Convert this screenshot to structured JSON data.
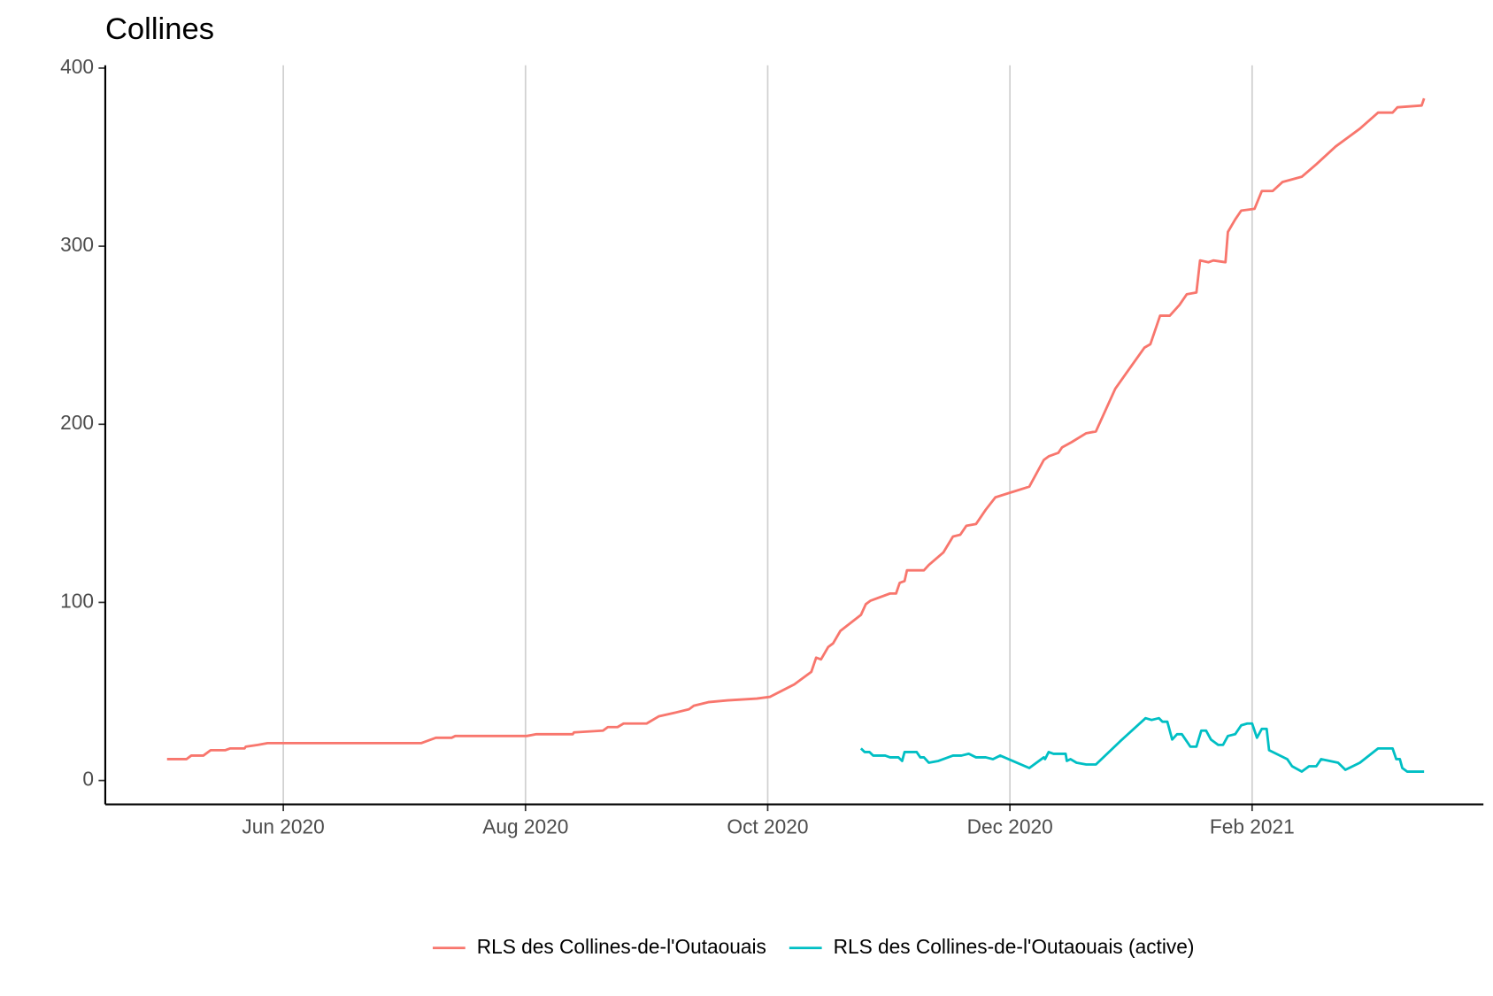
{
  "chart_data": {
    "type": "line",
    "title": "Collines",
    "xlim": [
      4.53,
      15.91
    ],
    "xticks": [
      {
        "value": 6,
        "label": "Jun 2020"
      },
      {
        "value": 8,
        "label": "Aug 2020"
      },
      {
        "value": 10,
        "label": "Oct 2020"
      },
      {
        "value": 12,
        "label": "Dec 2020"
      },
      {
        "value": 14,
        "label": "Feb 2021"
      }
    ],
    "ylim": [
      -13.4,
      401.6
    ],
    "yticks": [
      0,
      100,
      200,
      300,
      400
    ],
    "grid": "x",
    "legend": "bottom",
    "series": [
      {
        "name": "RLS des Collines-de-l'Outaouais",
        "color": "#f8766d",
        "x": [
          5.04,
          5.2,
          5.24,
          5.34,
          5.4,
          5.52,
          5.56,
          5.68,
          5.69,
          5.79,
          5.87,
          7.14,
          7.26,
          7.39,
          7.42,
          8.01,
          8.09,
          8.39,
          8.4,
          8.64,
          8.68,
          8.76,
          8.81,
          9.0,
          9.1,
          9.23,
          9.35,
          9.39,
          9.51,
          9.67,
          9.91,
          10.02,
          10.22,
          10.36,
          10.4,
          10.44,
          10.5,
          10.54,
          10.6,
          10.77,
          10.81,
          10.85,
          11.01,
          11.06,
          11.09,
          11.13,
          11.15,
          11.29,
          11.33,
          11.45,
          11.53,
          11.59,
          11.64,
          11.72,
          11.8,
          11.88,
          12.16,
          12.28,
          12.32,
          12.4,
          12.43,
          12.51,
          12.63,
          12.71,
          12.87,
          13.11,
          13.16,
          13.24,
          13.32,
          13.4,
          13.46,
          13.54,
          13.57,
          13.64,
          13.68,
          13.78,
          13.8,
          13.86,
          13.91,
          14.02,
          14.08,
          14.17,
          14.25,
          14.41,
          14.53,
          14.69,
          14.89,
          15.04,
          15.16,
          15.2,
          15.4,
          15.42
        ],
        "values": [
          12,
          12,
          14,
          14,
          17,
          17,
          18,
          18,
          19,
          20,
          21,
          21,
          24,
          24,
          25,
          25,
          26,
          26,
          27,
          28,
          30,
          30,
          32,
          32,
          36,
          38,
          40,
          42,
          44,
          45,
          46,
          47,
          54,
          61,
          69,
          68,
          75,
          77,
          84,
          93,
          99,
          101,
          105,
          105,
          111,
          112,
          118,
          118,
          121,
          128,
          137,
          138,
          143,
          144,
          152,
          159,
          165,
          180,
          182,
          184,
          187,
          190,
          195,
          196,
          220,
          243,
          245,
          261,
          261,
          267,
          273,
          274,
          292,
          291,
          292,
          291,
          308,
          315,
          320,
          321,
          331,
          331,
          336,
          339,
          346,
          356,
          366,
          375,
          375,
          378,
          379,
          383
        ]
      },
      {
        "name": "RLS des Collines-de-l'Outaouais (active)",
        "color": "#00bfc4",
        "x": [
          10.77,
          10.8,
          10.84,
          10.87,
          10.97,
          11.01,
          11.08,
          11.11,
          11.13,
          11.23,
          11.26,
          11.29,
          11.33,
          11.41,
          11.53,
          11.6,
          11.66,
          11.72,
          11.8,
          11.86,
          11.92,
          12.16,
          12.28,
          12.29,
          12.32,
          12.36,
          12.46,
          12.47,
          12.5,
          12.55,
          12.63,
          12.71,
          12.91,
          13.12,
          13.17,
          13.23,
          13.26,
          13.3,
          13.34,
          13.38,
          13.42,
          13.49,
          13.54,
          13.58,
          13.62,
          13.66,
          13.72,
          13.76,
          13.8,
          13.86,
          13.91,
          13.96,
          14.0,
          14.04,
          14.08,
          14.12,
          14.14,
          14.29,
          14.33,
          14.41,
          14.47,
          14.53,
          14.57,
          14.71,
          14.77,
          14.89,
          15.04,
          15.16,
          15.19,
          15.22,
          15.24,
          15.28,
          15.42
        ],
        "values": [
          18,
          16,
          16,
          14,
          14,
          13,
          13,
          11,
          16,
          16,
          13,
          13,
          10,
          11,
          14,
          14,
          15,
          13,
          13,
          12,
          14,
          7,
          13,
          12,
          16,
          15,
          15,
          11,
          12,
          10,
          9,
          9,
          22,
          35,
          34,
          35,
          33,
          33,
          23,
          26,
          26,
          19,
          19,
          28,
          28,
          23,
          20,
          20,
          25,
          26,
          31,
          32,
          32,
          24,
          29,
          29,
          17,
          12,
          8,
          5,
          8,
          8,
          12,
          10,
          6,
          10,
          18,
          18,
          12,
          12,
          7,
          5,
          5
        ]
      }
    ]
  }
}
